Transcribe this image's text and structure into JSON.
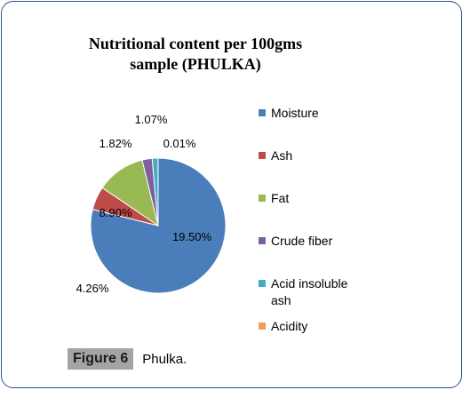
{
  "chart_data": {
    "type": "pie",
    "title": "Nutritional content per 100gms sample (PHULKA)",
    "title_lines": [
      "Nutritional content per 100gms",
      "sample (PHULKA)"
    ],
    "slices": [
      {
        "name": "Moisture",
        "value": 60.0,
        "label": "",
        "color": "#4a7ebb"
      },
      {
        "name": "Ash",
        "value": 4.26,
        "label": "4.26%",
        "color": "#be4b48"
      },
      {
        "name": "Fat",
        "value": 8.9,
        "label": "8.90%",
        "color": "#98b954"
      },
      {
        "name": "Crude fiber",
        "value": 1.82,
        "label": "1.82%",
        "color": "#7d60a0"
      },
      {
        "name": "Acid insoluble ash",
        "value": 1.07,
        "label": "1.07%",
        "color": "#46aac4"
      },
      {
        "name": "Acidity",
        "value": 0.01,
        "label": "0.01%",
        "color": "#f59d56"
      }
    ],
    "extra_labels": [
      "19.50%"
    ],
    "legend": {
      "position": "right",
      "items": [
        "Moisture",
        "Ash",
        "Fat",
        "Crude fiber",
        "Acid insoluble ash",
        "Acidity"
      ],
      "colors": [
        "#4a7ebb",
        "#be4b48",
        "#98b954",
        "#7d60a0",
        "#46aac4",
        "#f59d56"
      ]
    }
  },
  "caption": {
    "figure_label": "Figure 6",
    "text": "Phulka."
  }
}
